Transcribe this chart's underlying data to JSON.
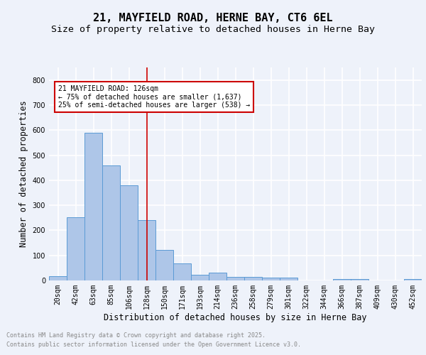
{
  "title1": "21, MAYFIELD ROAD, HERNE BAY, CT6 6EL",
  "title2": "Size of property relative to detached houses in Herne Bay",
  "xlabel": "Distribution of detached houses by size in Herne Bay",
  "ylabel": "Number of detached properties",
  "categories": [
    "20sqm",
    "42sqm",
    "63sqm",
    "85sqm",
    "106sqm",
    "128sqm",
    "150sqm",
    "171sqm",
    "193sqm",
    "214sqm",
    "236sqm",
    "258sqm",
    "279sqm",
    "301sqm",
    "322sqm",
    "344sqm",
    "366sqm",
    "387sqm",
    "409sqm",
    "430sqm",
    "452sqm"
  ],
  "values": [
    18,
    252,
    590,
    458,
    380,
    240,
    122,
    68,
    22,
    30,
    14,
    14,
    10,
    10,
    0,
    0,
    5,
    5,
    0,
    0,
    5
  ],
  "bar_color": "#aec6e8",
  "bar_edge_color": "#5b9bd5",
  "vline_x": 5,
  "vline_color": "#cc0000",
  "annotation_text": "21 MAYFIELD ROAD: 126sqm\n← 75% of detached houses are smaller (1,637)\n25% of semi-detached houses are larger (538) →",
  "annotation_box_color": "#ffffff",
  "annotation_box_edge_color": "#cc0000",
  "ylim": [
    0,
    850
  ],
  "yticks": [
    0,
    100,
    200,
    300,
    400,
    500,
    600,
    700,
    800
  ],
  "bg_color": "#eef2fa",
  "plot_bg_color": "#eef2fa",
  "grid_color": "#ffffff",
  "footer_line1": "Contains HM Land Registry data © Crown copyright and database right 2025.",
  "footer_line2": "Contains public sector information licensed under the Open Government Licence v3.0.",
  "footer_color": "#888888",
  "title_fontsize": 11,
  "subtitle_fontsize": 9.5,
  "tick_fontsize": 7,
  "label_fontsize": 8.5,
  "annot_fontsize": 7
}
